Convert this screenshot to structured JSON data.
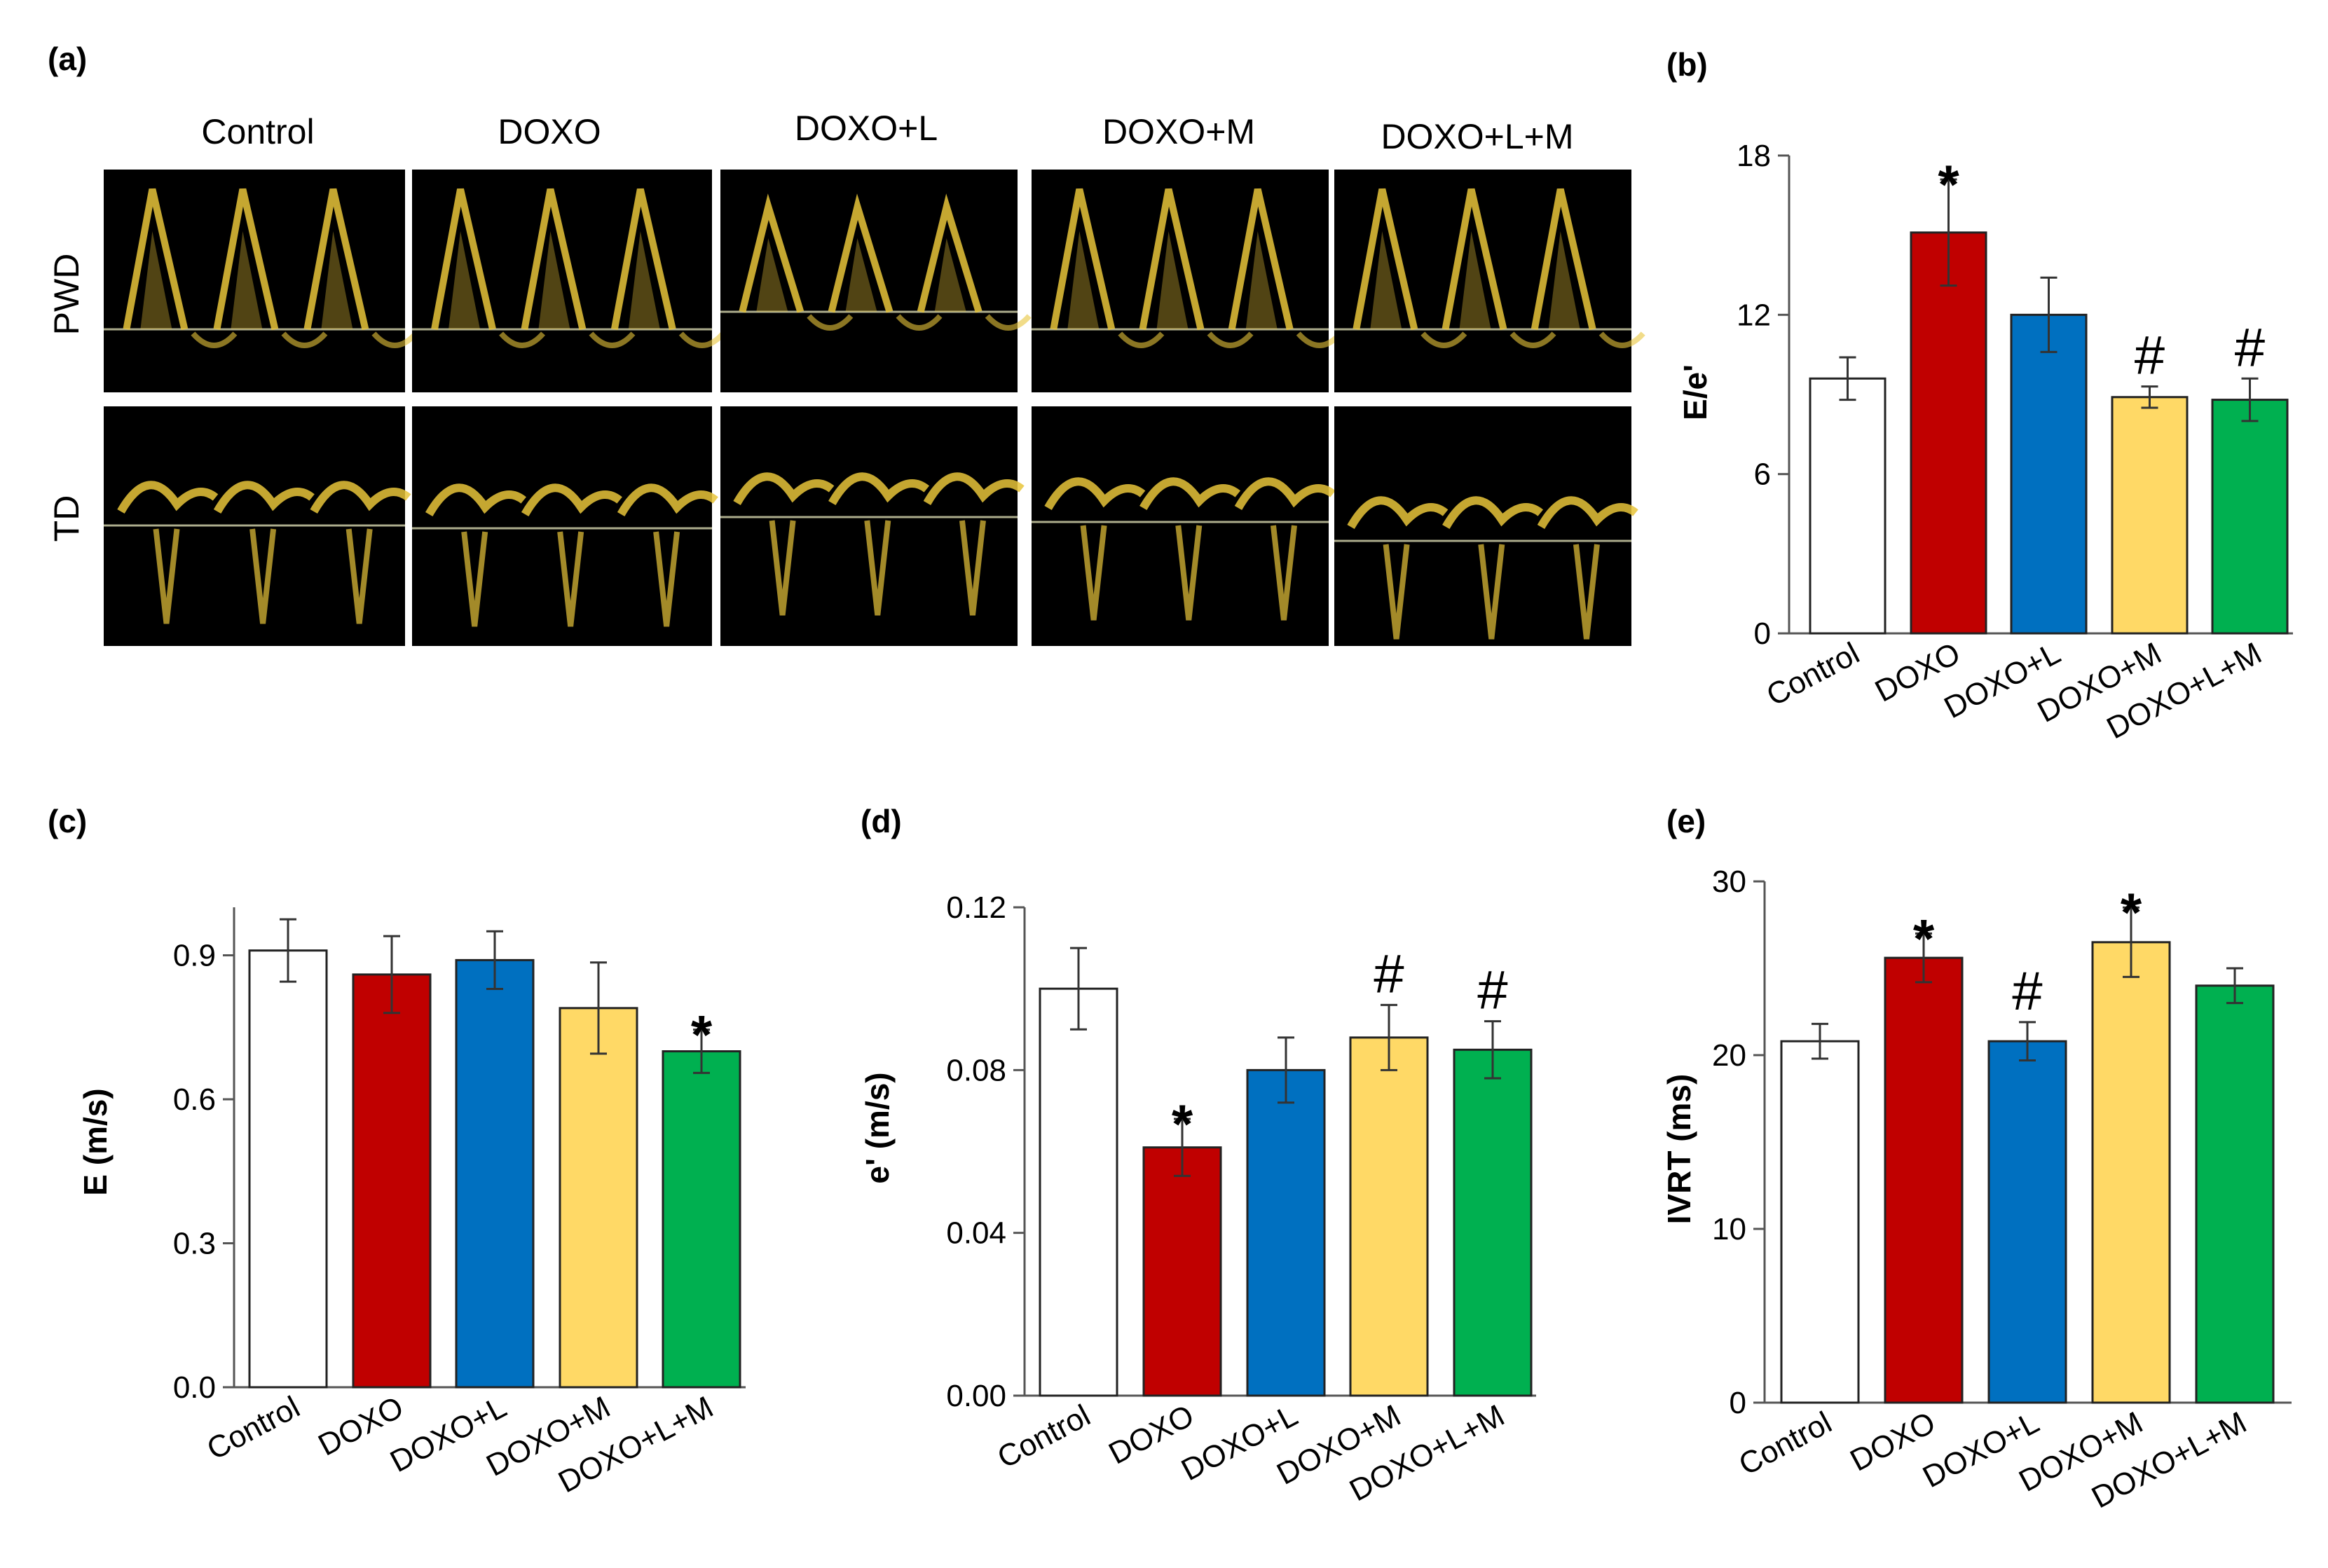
{
  "figure": {
    "panel_a_label": "(a)",
    "image_titles": [
      "Control",
      "DOXO",
      "DOXO+L",
      "DOXO+M",
      "DOXO+L+M"
    ],
    "row_labels": [
      "PWD",
      "TD"
    ]
  },
  "colors": {
    "Control": "#ffffff",
    "DOXO": "#c00000",
    "DOXO+L": "#0070c0",
    "DOXO+M": "#ffd966",
    "DOXO+L+M": "#00b050",
    "doppler": "#e8c43a"
  },
  "chart_data": [
    {
      "id": "b",
      "panel_label": "(b)",
      "type": "bar",
      "ylabel": "E/e'",
      "categories": [
        "Control",
        "DOXO",
        "DOXO+L",
        "DOXO+M",
        "DOXO+L+M"
      ],
      "values": [
        9.6,
        15.1,
        12.0,
        8.9,
        8.8
      ],
      "errors": [
        0.8,
        2.0,
        1.4,
        0.4,
        0.8
      ],
      "annotations": [
        "",
        "*",
        "",
        "#",
        "#"
      ],
      "ylim": [
        0,
        18
      ],
      "yticks": [
        0,
        6,
        12,
        18
      ],
      "ytick_labels": [
        "0",
        "6",
        "12",
        "18"
      ]
    },
    {
      "id": "c",
      "panel_label": "(c)",
      "type": "bar",
      "ylabel": "E (m/s)",
      "categories": [
        "Control",
        "DOXO",
        "DOXO+L",
        "DOXO+M",
        "DOXO+L+M"
      ],
      "values": [
        0.91,
        0.86,
        0.89,
        0.79,
        0.7
      ],
      "errors": [
        0.065,
        0.08,
        0.06,
        0.095,
        0.045
      ],
      "annotations": [
        "",
        "",
        "",
        "",
        "*"
      ],
      "ylim": [
        0,
        1.0
      ],
      "yticks": [
        0,
        0.3,
        0.6,
        0.9
      ],
      "ytick_labels": [
        "0.0",
        "0.3",
        "0.6",
        "0.9"
      ]
    },
    {
      "id": "d",
      "panel_label": "(d)",
      "type": "bar",
      "ylabel": "e' (m/s)",
      "categories": [
        "Control",
        "DOXO",
        "DOXO+L",
        "DOXO+M",
        "DOXO+L+M"
      ],
      "values": [
        0.1,
        0.061,
        0.08,
        0.088,
        0.085
      ],
      "errors": [
        0.01,
        0.007,
        0.008,
        0.008,
        0.007
      ],
      "annotations": [
        "",
        "*",
        "",
        "#",
        "#"
      ],
      "ylim": [
        0,
        0.12
      ],
      "yticks": [
        0,
        0.04,
        0.08,
        0.12
      ],
      "ytick_labels": [
        "0.00",
        "0.04",
        "0.08",
        "0.12"
      ]
    },
    {
      "id": "e",
      "panel_label": "(e)",
      "type": "bar",
      "ylabel": "IVRT (ms)",
      "categories": [
        "Control",
        "DOXO",
        "DOXO+L",
        "DOXO+M",
        "DOXO+L+M"
      ],
      "values": [
        20.8,
        25.6,
        20.8,
        26.5,
        24.0
      ],
      "errors": [
        1.0,
        1.4,
        1.1,
        2.0,
        1.0
      ],
      "annotations": [
        "",
        "*",
        "#",
        "*",
        ""
      ],
      "ylim": [
        0,
        30
      ],
      "yticks": [
        0,
        10,
        20,
        30
      ],
      "ytick_labels": [
        "0",
        "10",
        "20",
        "30"
      ]
    }
  ]
}
